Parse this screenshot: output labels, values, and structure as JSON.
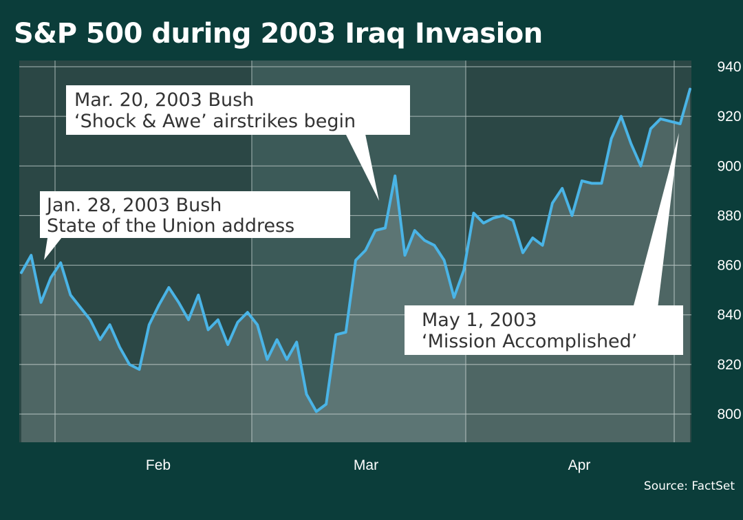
{
  "chart_data": {
    "type": "line",
    "title": "S&P 500 during 2003 Iraq Invasion",
    "source": "Source: FactSet",
    "xlabel": "",
    "ylabel": "",
    "ylim": [
      790,
      945
    ],
    "yticks": [
      800,
      820,
      840,
      860,
      880,
      900,
      920,
      940
    ],
    "month_labels": [
      "Feb",
      "Mar",
      "Apr"
    ],
    "series": [
      {
        "name": "S&P 500",
        "values": [
          857,
          864,
          845,
          855,
          861,
          848,
          843,
          838,
          830,
          836,
          827,
          820,
          818,
          836,
          844,
          851,
          845,
          838,
          848,
          834,
          838,
          828,
          837,
          841,
          836,
          822,
          830,
          822,
          829,
          808,
          801,
          804,
          832,
          833,
          862,
          866,
          874,
          875,
          896,
          864,
          874,
          870,
          868,
          862,
          847,
          858,
          881,
          877,
          879,
          880,
          878,
          865,
          871,
          868,
          885,
          891,
          880,
          894,
          893,
          893,
          911,
          920,
          909,
          900,
          915,
          919,
          918,
          917,
          931
        ]
      }
    ],
    "annotations": [
      {
        "lines": [
          "Jan. 28, 2003 Bush",
          "State of the Union address"
        ]
      },
      {
        "lines": [
          "Mar. 20, 2003 Bush",
          "‘Shock & Awe’ airstrikes begin"
        ]
      },
      {
        "lines": [
          "May 1, 2003",
          "‘Mission Accomplished’"
        ]
      }
    ]
  }
}
